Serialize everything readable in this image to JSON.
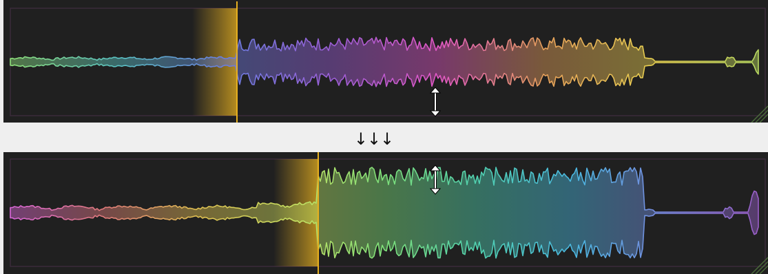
{
  "separator": {
    "arrows": "↓↓↓"
  },
  "colors": {
    "background": "#202020",
    "page": "#efefef",
    "frame": "#3a2a3a",
    "playhead": "#e6b020",
    "cursor": "#ffffff"
  },
  "panels": [
    {
      "id": "top",
      "playhead_fraction": 0.305,
      "waveform_gradient": [
        "#8fe07a",
        "#5ac4c4",
        "#6a7ee0",
        "#9a5ed6",
        "#e257c6",
        "#e6a05a",
        "#e8d050",
        "#b8d860"
      ],
      "cursor": "vertical-resize-cursor"
    },
    {
      "id": "bottom",
      "playhead_fraction": 0.412,
      "waveform_gradient": [
        "#d866d8",
        "#e07a7a",
        "#e0c050",
        "#c8e060",
        "#7ee07a",
        "#50d0b0",
        "#4ab8e0",
        "#7a88e0",
        "#9a5ec8"
      ],
      "cursor": "vertical-resize-cursor"
    }
  ]
}
